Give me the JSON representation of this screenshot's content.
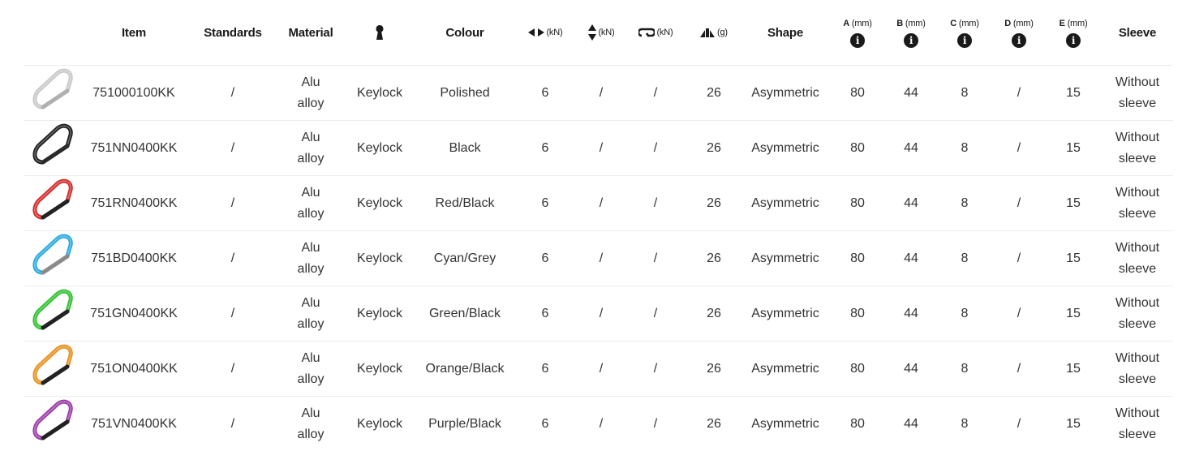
{
  "header": {
    "item": "Item",
    "standards": "Standards",
    "material": "Material",
    "gate_icon": "keylock-icon",
    "colour": "Colour",
    "major_axis_unit": "(kN)",
    "minor_axis_unit": "(kN)",
    "gate_open_unit": "(kN)",
    "weight_unit": "(g)",
    "shape": "Shape",
    "a_label": "A",
    "a_unit": "(mm)",
    "b_label": "B",
    "b_unit": "(mm)",
    "c_label": "C",
    "c_unit": "(mm)",
    "d_label": "D",
    "d_unit": "(mm)",
    "e_label": "E",
    "e_unit": "(mm)",
    "info_glyph": "i",
    "sleeve": "Sleeve"
  },
  "rows": [
    {
      "item": "751000100KK",
      "standards": "/",
      "material1": "Alu",
      "material2": "alloy",
      "gate": "Keylock",
      "colour": "Polished",
      "major": "6",
      "minor": "/",
      "open": "/",
      "weight": "26",
      "shape": "Asymmetric",
      "a": "80",
      "b": "44",
      "c": "8",
      "d": "/",
      "e": "15",
      "sleeve1": "Without",
      "sleeve2": "sleeve",
      "body_color": "#c8c8c8",
      "gate_color": "#b0b0b0"
    },
    {
      "item": "751NN0400KK",
      "standards": "/",
      "material1": "Alu",
      "material2": "alloy",
      "gate": "Keylock",
      "colour": "Black",
      "major": "6",
      "minor": "/",
      "open": "/",
      "weight": "26",
      "shape": "Asymmetric",
      "a": "80",
      "b": "44",
      "c": "8",
      "d": "/",
      "e": "15",
      "sleeve1": "Without",
      "sleeve2": "sleeve",
      "body_color": "#1e1e1e",
      "gate_color": "#2a2a2a"
    },
    {
      "item": "751RN0400KK",
      "standards": "/",
      "material1": "Alu",
      "material2": "alloy",
      "gate": "Keylock",
      "colour": "Red/Black",
      "major": "6",
      "minor": "/",
      "open": "/",
      "weight": "26",
      "shape": "Asymmetric",
      "a": "80",
      "b": "44",
      "c": "8",
      "d": "/",
      "e": "15",
      "sleeve1": "Without",
      "sleeve2": "sleeve",
      "body_color": "#d42a2a",
      "gate_color": "#222222"
    },
    {
      "item": "751BD0400KK",
      "standards": "/",
      "material1": "Alu",
      "material2": "alloy",
      "gate": "Keylock",
      "colour": "Cyan/Grey",
      "major": "6",
      "minor": "/",
      "open": "/",
      "weight": "26",
      "shape": "Asymmetric",
      "a": "80",
      "b": "44",
      "c": "8",
      "d": "/",
      "e": "15",
      "sleeve1": "Without",
      "sleeve2": "sleeve",
      "body_color": "#27a9e1",
      "gate_color": "#8a8a8a"
    },
    {
      "item": "751GN0400KK",
      "standards": "/",
      "material1": "Alu",
      "material2": "alloy",
      "gate": "Keylock",
      "colour": "Green/Black",
      "major": "6",
      "minor": "/",
      "open": "/",
      "weight": "26",
      "shape": "Asymmetric",
      "a": "80",
      "b": "44",
      "c": "8",
      "d": "/",
      "e": "15",
      "sleeve1": "Without",
      "sleeve2": "sleeve",
      "body_color": "#2fc12f",
      "gate_color": "#222222"
    },
    {
      "item": "751ON0400KK",
      "standards": "/",
      "material1": "Alu",
      "material2": "alloy",
      "gate": "Keylock",
      "colour": "Orange/Black",
      "major": "6",
      "minor": "/",
      "open": "/",
      "weight": "26",
      "shape": "Asymmetric",
      "a": "80",
      "b": "44",
      "c": "8",
      "d": "/",
      "e": "15",
      "sleeve1": "Without",
      "sleeve2": "sleeve",
      "body_color": "#e8901e",
      "gate_color": "#222222"
    },
    {
      "item": "751VN0400KK",
      "standards": "/",
      "material1": "Alu",
      "material2": "alloy",
      "gate": "Keylock",
      "colour": "Purple/Black",
      "major": "6",
      "minor": "/",
      "open": "/",
      "weight": "26",
      "shape": "Asymmetric",
      "a": "80",
      "b": "44",
      "c": "8",
      "d": "/",
      "e": "15",
      "sleeve1": "Without",
      "sleeve2": "sleeve",
      "body_color": "#9b3aa8",
      "gate_color": "#222222"
    }
  ]
}
